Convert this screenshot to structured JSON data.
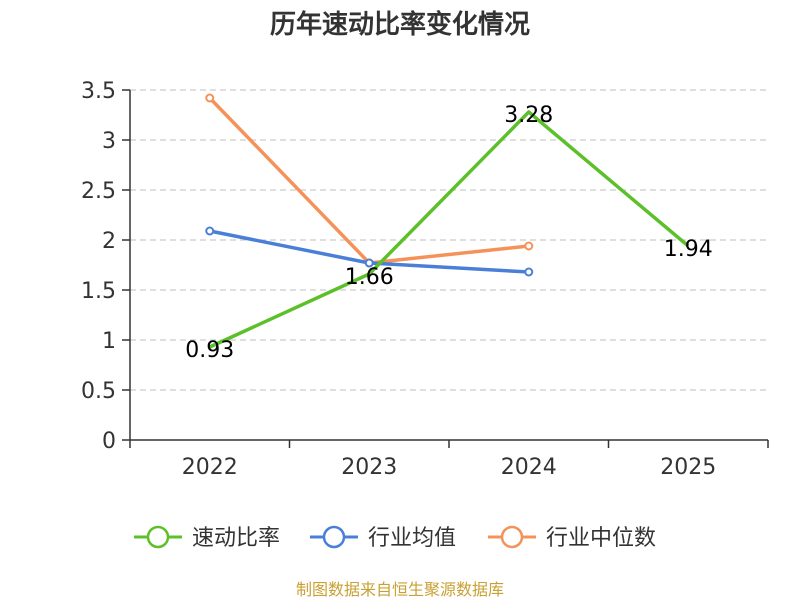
{
  "chart_data": {
    "type": "line",
    "title": "历年速动比率变化情况",
    "categories": [
      "2022",
      "2023",
      "2024",
      "2025"
    ],
    "ylim": [
      0,
      3.5
    ],
    "yticks": [
      "0",
      "0.5",
      "1",
      "1.5",
      "2",
      "2.5",
      "3",
      "3.5"
    ],
    "ytick_values": [
      0,
      0.5,
      1,
      1.5,
      2,
      2.5,
      3,
      3.5
    ],
    "grid": true,
    "legend_position": "bottom",
    "series": [
      {
        "name": "速动比率",
        "color": "#5cc02a",
        "values": [
          0.93,
          1.66,
          3.28,
          1.94
        ],
        "labels": [
          "0.93",
          "1.66",
          "3.28",
          "1.94"
        ],
        "markers": false
      },
      {
        "name": "行业均值",
        "color": "#4a7fd8",
        "values": [
          2.09,
          1.77,
          1.68,
          null
        ],
        "markers": true
      },
      {
        "name": "行业中位数",
        "color": "#f5925a",
        "values": [
          3.42,
          1.77,
          1.94,
          null
        ],
        "markers": true
      }
    ],
    "source": "制图数据来自恒生聚源数据库"
  }
}
